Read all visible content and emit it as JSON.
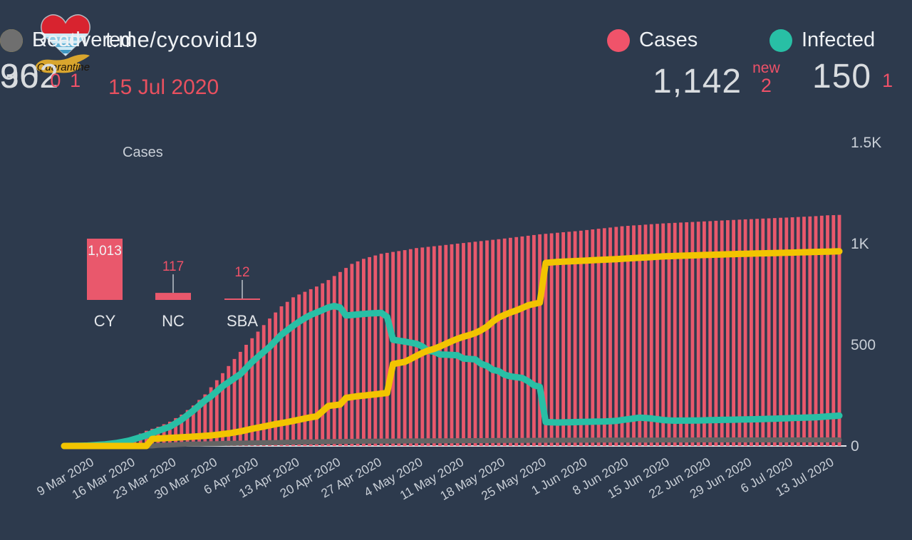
{
  "header": {
    "logo_title": "Quarantine",
    "site": "t.me/cycovid19",
    "date": "15 Jul 2020",
    "stats": [
      {
        "label": "Cases",
        "value": "1,142",
        "delta_prefix": "new",
        "delta": "2",
        "color": "#f0536a"
      },
      {
        "label": "Infected",
        "value": "150",
        "delta": "1",
        "color": "#28bfa5"
      },
      {
        "label": "Recovered",
        "value": "962",
        "delta": "1",
        "color": "#f2c500"
      },
      {
        "label": "Death",
        "value": "30",
        "delta": "0",
        "color": "#6f6f6f"
      }
    ]
  },
  "chart_data": {
    "type": "bar+line",
    "title": "Cases",
    "x_start_date": "5 Mar 2020",
    "x_end_date": "15 Jul 2020",
    "n_days": 133,
    "x_tick_first_day_index": 4,
    "x_tick_every_days": 7,
    "x_tick_labels": [
      "9 Mar 2020",
      "16 Mar 2020",
      "23 Mar 2020",
      "30 Mar 2020",
      "6 Apr 2020",
      "13 Apr 2020",
      "20 Apr 2020",
      "27 Apr 2020",
      "4 May 2020",
      "11 May 2020",
      "18 May 2020",
      "25 May 2020",
      "1 Jun 2020",
      "8 Jun 2020",
      "15 Jun 2020",
      "22 Jun 2020",
      "29 Jun 2020",
      "6 Jul 2020",
      "13 Jul 2020"
    ],
    "y_ticks": [
      {
        "label": "0",
        "value": 0
      },
      {
        "label": "500",
        "value": 500
      },
      {
        "label": "1K",
        "value": 1000
      },
      {
        "label": "1.5K",
        "value": 1500
      }
    ],
    "ylim": [
      0,
      1500
    ],
    "grid": false,
    "legend_position": "top",
    "anchors_note": "piecewise-linear control points [day_index, value]; day 0 = 5 Mar 2020",
    "series": [
      {
        "name": "Cases",
        "type": "bar",
        "color": "#e9586c",
        "final_value": 1142,
        "anchors": [
          [
            0,
            0
          ],
          [
            4,
            4
          ],
          [
            7,
            10
          ],
          [
            9,
            16
          ],
          [
            11,
            35
          ],
          [
            14,
            75
          ],
          [
            16,
            95
          ],
          [
            18,
            120
          ],
          [
            20,
            155
          ],
          [
            22,
            200
          ],
          [
            24,
            255
          ],
          [
            25,
            290
          ],
          [
            27,
            360
          ],
          [
            29,
            430
          ],
          [
            31,
            500
          ],
          [
            33,
            565
          ],
          [
            35,
            630
          ],
          [
            37,
            690
          ],
          [
            39,
            735
          ],
          [
            41,
            762
          ],
          [
            43,
            788
          ],
          [
            45,
            820
          ],
          [
            47,
            860
          ],
          [
            49,
            900
          ],
          [
            51,
            925
          ],
          [
            54,
            950
          ],
          [
            58,
            968
          ],
          [
            60,
            978
          ],
          [
            67,
            1000
          ],
          [
            74,
            1022
          ],
          [
            81,
            1046
          ],
          [
            88,
            1064
          ],
          [
            95,
            1086
          ],
          [
            102,
            1100
          ],
          [
            109,
            1110
          ],
          [
            116,
            1120
          ],
          [
            123,
            1129
          ],
          [
            128,
            1136
          ],
          [
            130,
            1140
          ],
          [
            132,
            1142
          ]
        ]
      },
      {
        "name": "Infected",
        "type": "line",
        "color": "#28bfa5",
        "final_value": 150,
        "anchors": [
          [
            0,
            0
          ],
          [
            4,
            2
          ],
          [
            7,
            8
          ],
          [
            9,
            15
          ],
          [
            11,
            26
          ],
          [
            14,
            52
          ],
          [
            16,
            75
          ],
          [
            18,
            95
          ],
          [
            20,
            130
          ],
          [
            22,
            175
          ],
          [
            24,
            225
          ],
          [
            25,
            245
          ],
          [
            26,
            270
          ],
          [
            27,
            295
          ],
          [
            28,
            315
          ],
          [
            29,
            335
          ],
          [
            30,
            355
          ],
          [
            31,
            385
          ],
          [
            32,
            415
          ],
          [
            33,
            440
          ],
          [
            34,
            465
          ],
          [
            35,
            490
          ],
          [
            36,
            520
          ],
          [
            37,
            550
          ],
          [
            38,
            572
          ],
          [
            39,
            594
          ],
          [
            40,
            614
          ],
          [
            41,
            632
          ],
          [
            42,
            648
          ],
          [
            43,
            660
          ],
          [
            44,
            672
          ],
          [
            45,
            685
          ],
          [
            46,
            692
          ],
          [
            47,
            684
          ],
          [
            48,
            645
          ],
          [
            50,
            650
          ],
          [
            52,
            655
          ],
          [
            54,
            658
          ],
          [
            55,
            638
          ],
          [
            56,
            525
          ],
          [
            58,
            516
          ],
          [
            60,
            505
          ],
          [
            61,
            492
          ],
          [
            62,
            470
          ],
          [
            63,
            466
          ],
          [
            64,
            452
          ],
          [
            66,
            450
          ],
          [
            67,
            448
          ],
          [
            68,
            432
          ],
          [
            70,
            428
          ],
          [
            71,
            406
          ],
          [
            72,
            396
          ],
          [
            73,
            376
          ],
          [
            74,
            370
          ],
          [
            75,
            352
          ],
          [
            76,
            344
          ],
          [
            78,
            336
          ],
          [
            79,
            320
          ],
          [
            80,
            300
          ],
          [
            81,
            292
          ],
          [
            82,
            118
          ],
          [
            84,
            116
          ],
          [
            87,
            118
          ],
          [
            90,
            120
          ],
          [
            92,
            121
          ],
          [
            94,
            124
          ],
          [
            96,
            132
          ],
          [
            98,
            140
          ],
          [
            100,
            136
          ],
          [
            102,
            128
          ],
          [
            104,
            125
          ],
          [
            108,
            126
          ],
          [
            112,
            129
          ],
          [
            116,
            131
          ],
          [
            120,
            134
          ],
          [
            123,
            137
          ],
          [
            126,
            140
          ],
          [
            128,
            142
          ],
          [
            130,
            146
          ],
          [
            132,
            150
          ]
        ]
      },
      {
        "name": "Recovered",
        "type": "line",
        "color": "#f2c400",
        "final_value": 962,
        "anchors": [
          [
            0,
            0
          ],
          [
            14,
            0
          ],
          [
            15,
            35
          ],
          [
            18,
            40
          ],
          [
            22,
            46
          ],
          [
            25,
            52
          ],
          [
            28,
            62
          ],
          [
            30,
            72
          ],
          [
            32,
            85
          ],
          [
            34,
            96
          ],
          [
            36,
            108
          ],
          [
            38,
            118
          ],
          [
            40,
            130
          ],
          [
            42,
            142
          ],
          [
            43,
            146
          ],
          [
            45,
            198
          ],
          [
            47,
            205
          ],
          [
            48,
            238
          ],
          [
            50,
            246
          ],
          [
            52,
            252
          ],
          [
            55,
            262
          ],
          [
            56,
            405
          ],
          [
            58,
            416
          ],
          [
            59,
            430
          ],
          [
            60,
            445
          ],
          [
            61,
            460
          ],
          [
            62,
            472
          ],
          [
            63,
            480
          ],
          [
            64,
            492
          ],
          [
            65,
            505
          ],
          [
            66,
            518
          ],
          [
            67,
            530
          ],
          [
            68,
            540
          ],
          [
            69,
            548
          ],
          [
            70,
            558
          ],
          [
            71,
            572
          ],
          [
            72,
            590
          ],
          [
            73,
            615
          ],
          [
            74,
            635
          ],
          [
            75,
            648
          ],
          [
            76,
            660
          ],
          [
            77,
            670
          ],
          [
            78,
            682
          ],
          [
            79,
            695
          ],
          [
            80,
            702
          ],
          [
            81,
            708
          ],
          [
            82,
            905
          ],
          [
            84,
            910
          ],
          [
            88,
            915
          ],
          [
            95,
            925
          ],
          [
            102,
            937
          ],
          [
            109,
            944
          ],
          [
            116,
            950
          ],
          [
            123,
            955
          ],
          [
            128,
            959
          ],
          [
            132,
            962
          ]
        ]
      },
      {
        "name": "Death",
        "type": "line",
        "color": "#646464",
        "final_value": 30,
        "anchors": [
          [
            0,
            0
          ],
          [
            15,
            0
          ],
          [
            16,
            3
          ],
          [
            18,
            5
          ],
          [
            21,
            9
          ],
          [
            25,
            11
          ],
          [
            28,
            13
          ],
          [
            32,
            15
          ],
          [
            36,
            17
          ],
          [
            39,
            19
          ],
          [
            42,
            20
          ],
          [
            46,
            22
          ],
          [
            53,
            24
          ],
          [
            60,
            25
          ],
          [
            67,
            26
          ],
          [
            74,
            27
          ],
          [
            81,
            28
          ],
          [
            95,
            29
          ],
          [
            112,
            30
          ],
          [
            132,
            30
          ]
        ]
      }
    ],
    "inset": {
      "type": "bar",
      "categories": [
        "CY",
        "NC",
        "SBA"
      ],
      "values": [
        1013,
        117,
        12
      ],
      "value_labels": [
        "1,013",
        "117",
        "12"
      ],
      "bar_color": "#e9586c",
      "label_color_inside": "#f0f2f4",
      "label_color_outside": "#ee5168"
    }
  }
}
